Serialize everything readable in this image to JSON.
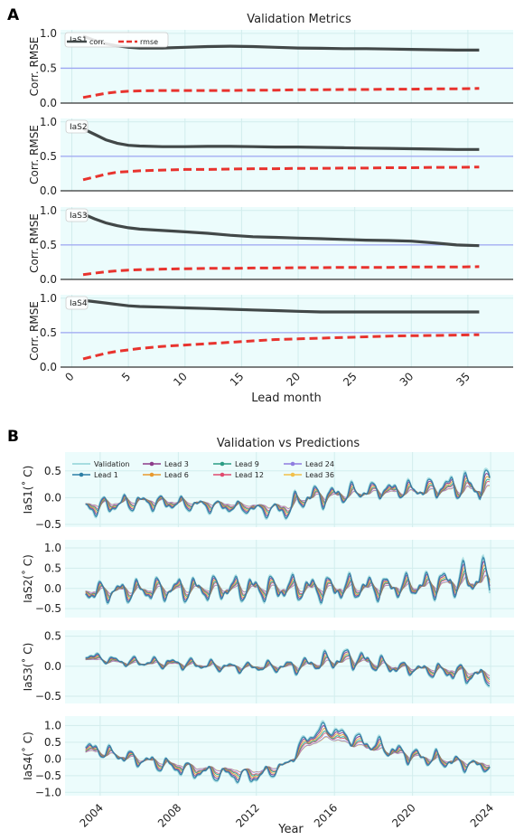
{
  "panel_labels": {
    "a": "A",
    "b": "B"
  },
  "colors": {
    "corr": "#424848",
    "rmse": "#e8332e",
    "ref_line": "#9da6f2",
    "plot_bg": "#ecfcfc",
    "validation": "#a6dde0",
    "lead1": "#2d7fa6",
    "lead3": "#8c3c8a",
    "lead6": "#e89a2e",
    "lead9": "#2b9c84",
    "lead12": "#e04a6e",
    "lead24": "#8f7de0",
    "lead36": "#f2c04a"
  },
  "chart_data": [
    {
      "type": "line",
      "title": "Validation Metrics",
      "xlabel": "Lead month",
      "ylabel": "Corr. RMSE",
      "xlim": [
        -1,
        39
      ],
      "ylim": [
        0,
        1.05
      ],
      "xticks": [
        0,
        5,
        10,
        15,
        20,
        25,
        30,
        35
      ],
      "yticks": [
        0.0,
        0.5,
        1.0
      ],
      "ytick_labels": [
        "0.0",
        "0.5",
        "1.0"
      ],
      "reference_line": 0.5,
      "legend": {
        "position": "top-left",
        "labels": [
          "corr.",
          "rmse"
        ]
      },
      "x": [
        1,
        2,
        3,
        4,
        5,
        6,
        8,
        10,
        12,
        14,
        16,
        18,
        20,
        22,
        24,
        26,
        28,
        30,
        32,
        34,
        36
      ],
      "panels": [
        {
          "label": "IaS1",
          "corr": [
            0.96,
            0.9,
            0.85,
            0.82,
            0.8,
            0.79,
            0.79,
            0.8,
            0.81,
            0.815,
            0.81,
            0.8,
            0.79,
            0.785,
            0.78,
            0.78,
            0.775,
            0.77,
            0.765,
            0.76,
            0.76
          ],
          "rmse": [
            0.08,
            0.11,
            0.14,
            0.16,
            0.17,
            0.175,
            0.18,
            0.18,
            0.18,
            0.18,
            0.185,
            0.185,
            0.19,
            0.19,
            0.195,
            0.195,
            0.2,
            0.2,
            0.205,
            0.205,
            0.21
          ]
        },
        {
          "label": "IaS2",
          "corr": [
            0.9,
            0.82,
            0.74,
            0.69,
            0.66,
            0.65,
            0.64,
            0.64,
            0.645,
            0.645,
            0.64,
            0.635,
            0.635,
            0.63,
            0.625,
            0.62,
            0.615,
            0.61,
            0.605,
            0.6,
            0.6
          ],
          "rmse": [
            0.16,
            0.2,
            0.24,
            0.27,
            0.28,
            0.29,
            0.3,
            0.31,
            0.31,
            0.315,
            0.32,
            0.32,
            0.325,
            0.325,
            0.33,
            0.33,
            0.335,
            0.335,
            0.34,
            0.34,
            0.345
          ]
        },
        {
          "label": "IaS3",
          "corr": [
            0.95,
            0.88,
            0.82,
            0.78,
            0.75,
            0.73,
            0.71,
            0.69,
            0.67,
            0.64,
            0.62,
            0.61,
            0.6,
            0.59,
            0.58,
            0.57,
            0.565,
            0.555,
            0.53,
            0.5,
            0.49
          ],
          "rmse": [
            0.07,
            0.09,
            0.11,
            0.125,
            0.135,
            0.14,
            0.15,
            0.155,
            0.16,
            0.16,
            0.165,
            0.165,
            0.17,
            0.17,
            0.175,
            0.175,
            0.175,
            0.18,
            0.18,
            0.18,
            0.185
          ]
        },
        {
          "label": "IaS4",
          "corr": [
            0.97,
            0.95,
            0.93,
            0.91,
            0.89,
            0.88,
            0.87,
            0.86,
            0.85,
            0.84,
            0.83,
            0.82,
            0.81,
            0.8,
            0.8,
            0.8,
            0.8,
            0.8,
            0.8,
            0.8,
            0.8
          ],
          "rmse": [
            0.12,
            0.16,
            0.2,
            0.23,
            0.25,
            0.27,
            0.3,
            0.32,
            0.34,
            0.36,
            0.38,
            0.4,
            0.41,
            0.42,
            0.43,
            0.44,
            0.45,
            0.455,
            0.46,
            0.465,
            0.47
          ]
        }
      ]
    },
    {
      "type": "line",
      "title": "Validation vs Predictions",
      "xlabel": "Year",
      "xlim": [
        2002.2,
        2025.2
      ],
      "xticks": [
        2004,
        2008,
        2012,
        2016,
        2020,
        2024
      ],
      "legend": {
        "position": "top-left",
        "entries": [
          "Validation",
          "Lead 1",
          "Lead 3",
          "Lead 6",
          "Lead 9",
          "Lead 12",
          "Lead 24",
          "Lead 36"
        ]
      },
      "panels": [
        {
          "ylabel": "IaS1(˚ C)",
          "ylim": [
            -0.55,
            0.85
          ],
          "yticks": [
            -0.5,
            0.0,
            0.5
          ],
          "ytick_labels": [
            "−0.5",
            "0.0",
            "0.5"
          ],
          "trend": [
            [
              2003.3,
              -0.2
            ],
            [
              2006,
              -0.08
            ],
            [
              2009,
              -0.14
            ],
            [
              2012,
              -0.22
            ],
            [
              2013.5,
              -0.25
            ],
            [
              2014.5,
              0.02
            ],
            [
              2016,
              0.05
            ],
            [
              2018,
              0.15
            ],
            [
              2020,
              0.15
            ],
            [
              2022,
              0.22
            ],
            [
              2024,
              0.22
            ]
          ],
          "amplitude": [
            [
              2003.3,
              0.22
            ],
            [
              2008,
              0.16
            ],
            [
              2012,
              0.12
            ],
            [
              2014.5,
              0.28
            ],
            [
              2018,
              0.18
            ],
            [
              2021,
              0.22
            ],
            [
              2024,
              0.4
            ]
          ]
        },
        {
          "ylabel": "IaS2(˚ C)",
          "ylim": [
            -0.72,
            1.2
          ],
          "yticks": [
            -0.5,
            0.0,
            0.5,
            1.0
          ],
          "ytick_labels": [
            "−0.5",
            "0.0",
            "0.5",
            "1.0"
          ],
          "trend": [
            [
              2003.3,
              -0.1
            ],
            [
              2008,
              -0.02
            ],
            [
              2012,
              0.0
            ],
            [
              2016,
              0.0
            ],
            [
              2020,
              0.05
            ],
            [
              2024,
              0.3
            ]
          ],
          "amplitude": [
            [
              2003.3,
              0.3
            ],
            [
              2008,
              0.38
            ],
            [
              2012,
              0.4
            ],
            [
              2016,
              0.4
            ],
            [
              2020,
              0.35
            ],
            [
              2024,
              0.6
            ]
          ]
        },
        {
          "ylabel": "IaS3(˚ C)",
          "ylim": [
            -0.62,
            0.6
          ],
          "yticks": [
            -0.5,
            0.0,
            0.5
          ],
          "ytick_labels": [
            "−0.5",
            "0.0",
            "0.5"
          ],
          "trend": [
            [
              2003.3,
              0.18
            ],
            [
              2005,
              0.08
            ],
            [
              2008,
              0.05
            ],
            [
              2011,
              -0.02
            ],
            [
              2014,
              0.0
            ],
            [
              2016.8,
              0.15
            ],
            [
              2019,
              -0.02
            ],
            [
              2022,
              -0.1
            ],
            [
              2024,
              -0.2
            ]
          ],
          "amplitude": [
            [
              2003.3,
              0.08
            ],
            [
              2008,
              0.12
            ],
            [
              2012,
              0.1
            ],
            [
              2016.8,
              0.22
            ],
            [
              2020,
              0.12
            ],
            [
              2023,
              0.2
            ],
            [
              2024,
              0.16
            ]
          ]
        },
        {
          "ylabel": "IaS4(˚ C)",
          "ylim": [
            -1.1,
            1.28
          ],
          "yticks": [
            -1.0,
            -0.5,
            0.0,
            0.5,
            1.0
          ],
          "ytick_labels": [
            "−1.0",
            "−0.5",
            "0.0",
            "0.5",
            "1.0"
          ],
          "trend": [
            [
              2003.3,
              0.35
            ],
            [
              2005,
              0.1
            ],
            [
              2007,
              -0.15
            ],
            [
              2009,
              -0.4
            ],
            [
              2012,
              -0.55
            ],
            [
              2013.5,
              -0.2
            ],
            [
              2014.5,
              0.6
            ],
            [
              2015.5,
              0.95
            ],
            [
              2017,
              0.6
            ],
            [
              2019,
              0.25
            ],
            [
              2020,
              0.1
            ],
            [
              2022,
              -0.1
            ],
            [
              2024,
              -0.25
            ]
          ],
          "amplitude": [
            [
              2003.3,
              0.25
            ],
            [
              2008,
              0.28
            ],
            [
              2012,
              0.25
            ],
            [
              2015.5,
              0.2
            ],
            [
              2018,
              0.3
            ],
            [
              2021,
              0.32
            ],
            [
              2024,
              0.2
            ]
          ]
        }
      ]
    }
  ]
}
